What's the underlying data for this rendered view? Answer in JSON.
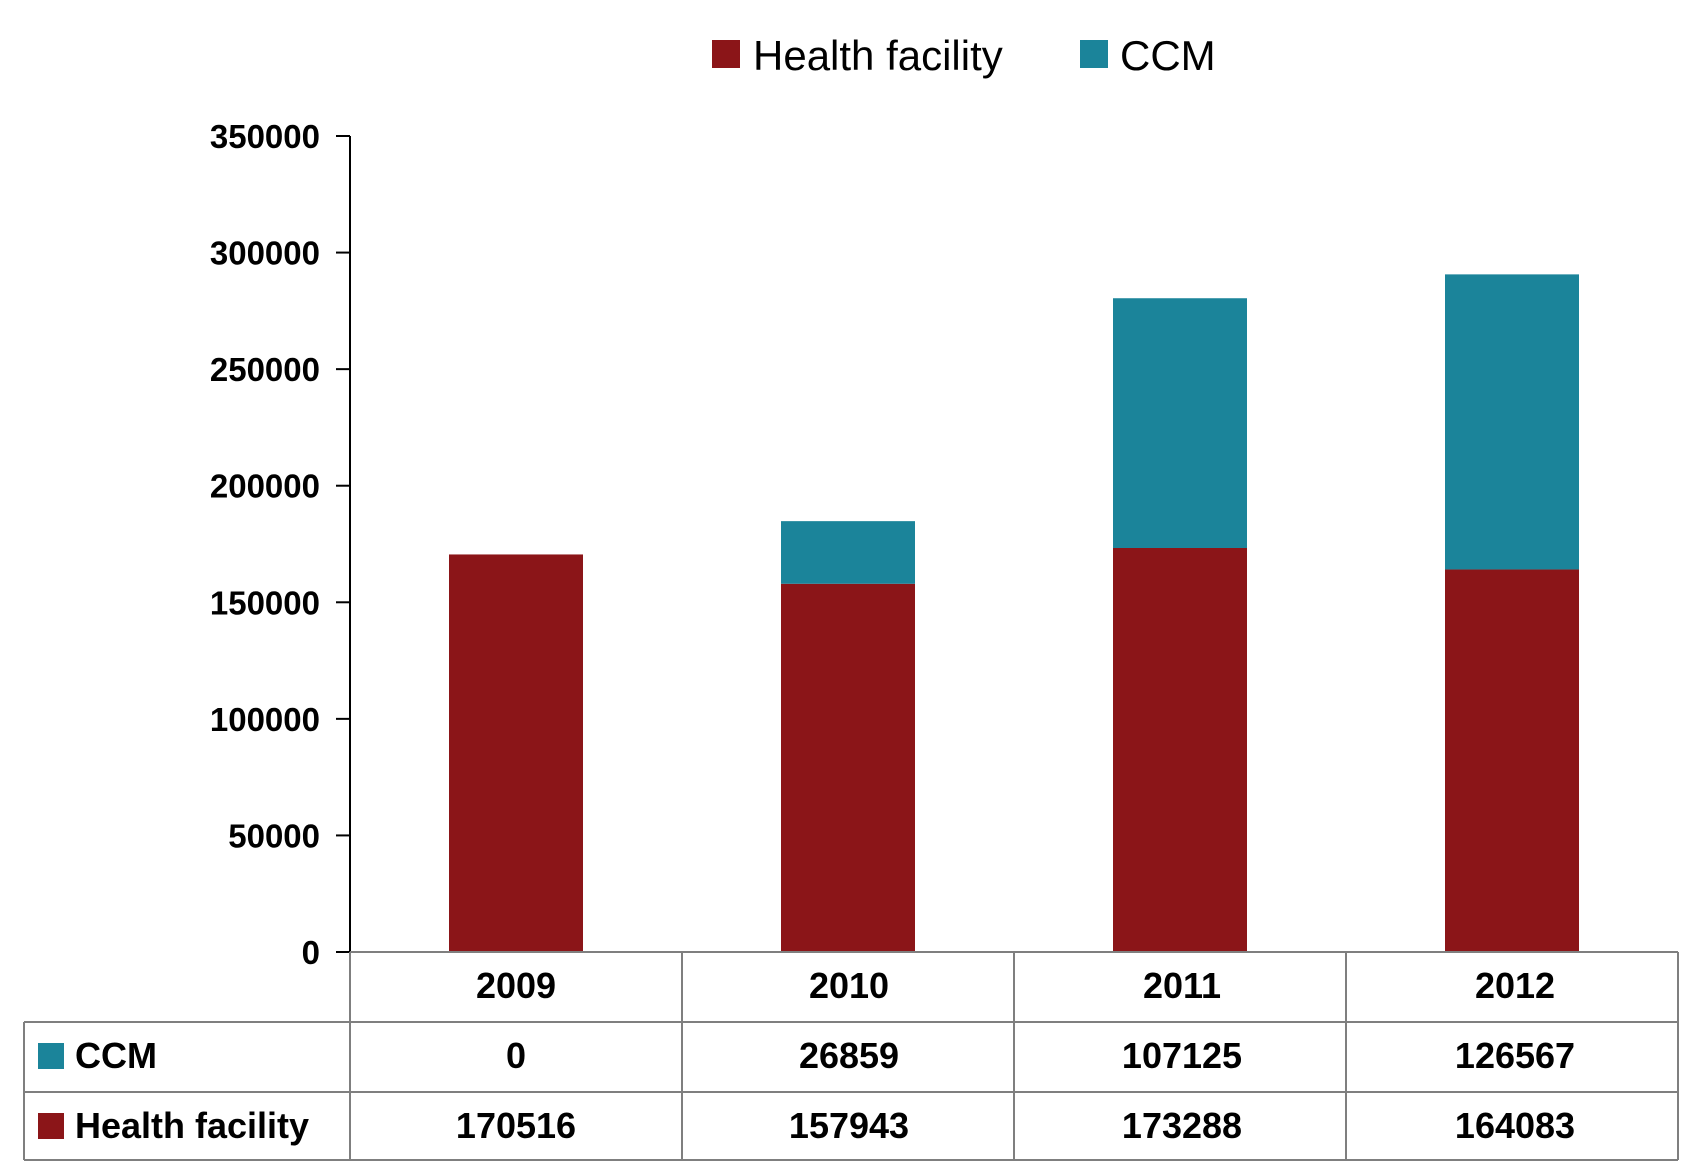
{
  "chart_data": {
    "type": "bar",
    "stacked": true,
    "title": "",
    "xlabel": "",
    "ylabel": "",
    "categories": [
      "2009",
      "2010",
      "2011",
      "2012"
    ],
    "series": [
      {
        "name": "Health facility",
        "color": "#8B1518",
        "values": [
          170516,
          157943,
          173288,
          164083
        ]
      },
      {
        "name": "CCM",
        "color": "#1B849A",
        "values": [
          0,
          26859,
          107125,
          126567
        ]
      }
    ],
    "ylim": [
      0,
      350000
    ],
    "yticks": [
      "0",
      "50000",
      "100000",
      "150000",
      "200000",
      "250000",
      "300000",
      "350000"
    ],
    "legend": {
      "position": "top",
      "items": [
        "Health facility",
        "CCM"
      ]
    },
    "data_table": {
      "rows": [
        {
          "label": "CCM",
          "series": "CCM",
          "cells": [
            "0",
            "26859",
            "107125",
            "126567"
          ]
        },
        {
          "label": "Health facility",
          "series": "Health facility",
          "cells": [
            "170516",
            "157943",
            "173288",
            "164083"
          ]
        }
      ]
    }
  }
}
